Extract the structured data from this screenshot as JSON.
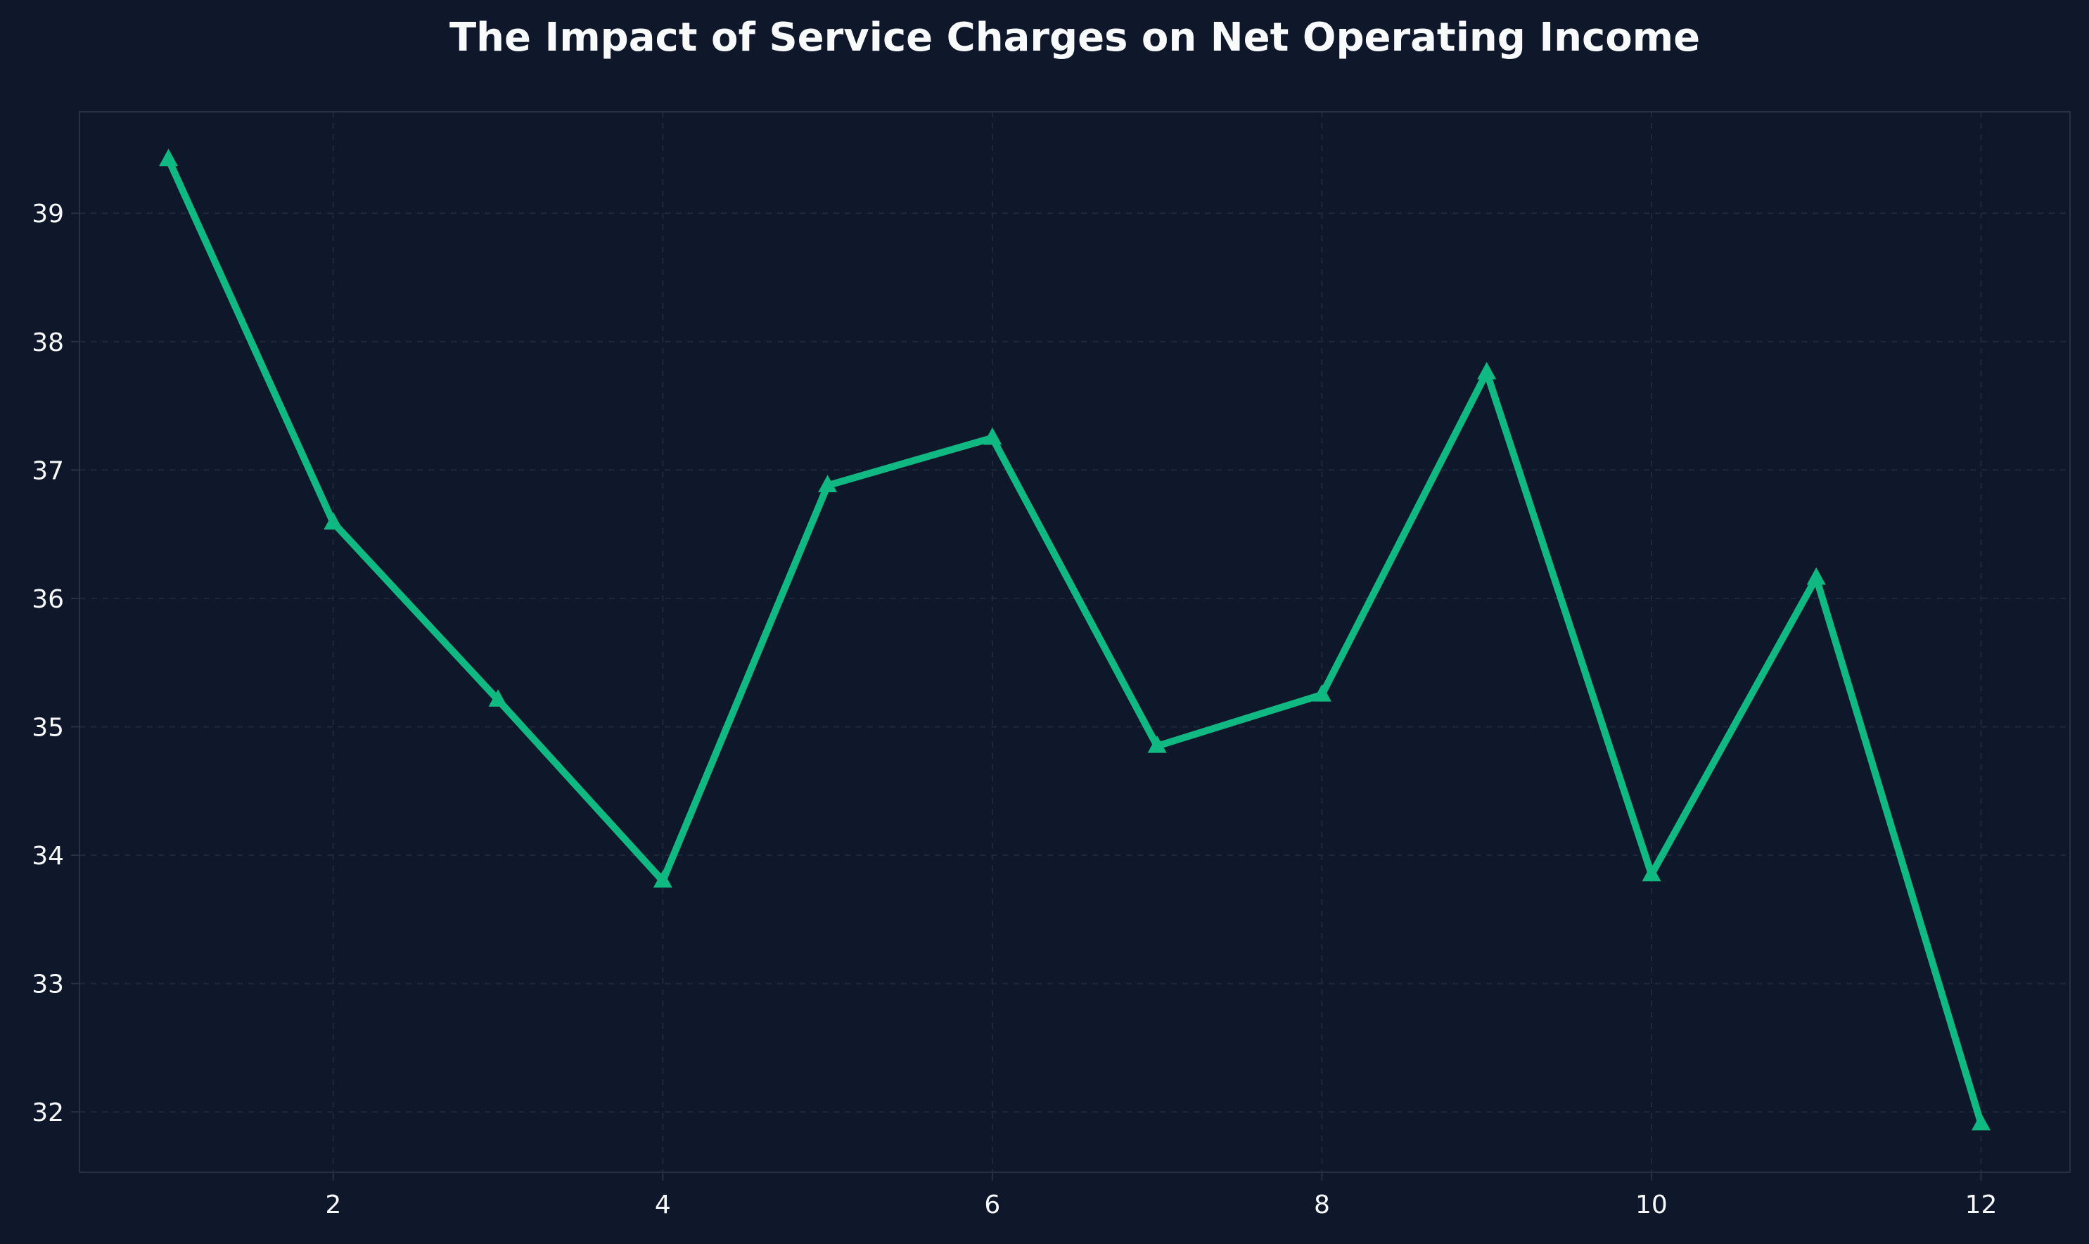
{
  "chart_data": {
    "type": "line",
    "title": "The Impact of Service Charges on Net Operating Income",
    "xlabel": "",
    "ylabel": "",
    "x": [
      1,
      2,
      3,
      4,
      5,
      6,
      7,
      8,
      9,
      10,
      11,
      12
    ],
    "series": [
      {
        "values": [
          39.42,
          36.59,
          35.21,
          33.8,
          36.88,
          37.25,
          34.85,
          35.25,
          37.76,
          33.85,
          36.16,
          31.91
        ],
        "color": "#10b981",
        "marker": "triangle"
      }
    ],
    "xlim": [
      0.46,
      12.54
    ],
    "ylim": [
      31.53,
      39.79
    ],
    "xticks": [
      2,
      4,
      6,
      8,
      10,
      12
    ],
    "yticks": [
      32,
      33,
      34,
      35,
      36,
      37,
      38,
      39
    ],
    "grid": true,
    "background": "#0f172a",
    "text_color": "#f8fafc"
  }
}
